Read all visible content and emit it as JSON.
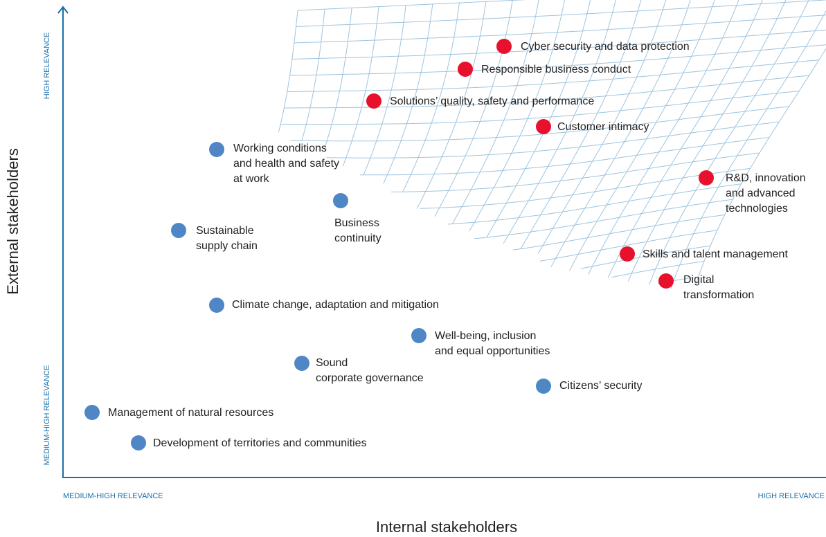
{
  "axes": {
    "y_title": "External stakeholders",
    "x_title": "Internal stakeholders",
    "y_high": "HIGH RELEVANCE",
    "y_low": "MEDIUM-HIGH RELEVANCE",
    "x_low": "MEDIUM-HIGH RELEVANCE",
    "x_high": "HIGH RELEVANCE",
    "color": "#1a6ea8"
  },
  "nodes": [
    {
      "lines": [
        "Cyber security and data protection"
      ],
      "color": "#e8112d"
    },
    {
      "lines": [
        "Responsible business conduct"
      ],
      "color": "#e8112d"
    },
    {
      "lines": [
        "Solutions’ quality, safety and performance"
      ],
      "color": "#e8112d"
    },
    {
      "lines": [
        "Customer intimacy"
      ],
      "color": "#e8112d"
    },
    {
      "lines": [
        "R&D, innovation",
        "and advanced",
        "technologies"
      ],
      "color": "#e8112d"
    },
    {
      "lines": [
        "Skills and talent management"
      ],
      "color": "#e8112d"
    },
    {
      "lines": [
        "Digital",
        "transformation"
      ],
      "color": "#e8112d"
    },
    {
      "lines": [
        "Working conditions",
        "and health and safety",
        "at work"
      ],
      "color": "#4f86c6"
    },
    {
      "lines": [
        "Business",
        "continuity"
      ],
      "color": "#4f86c6"
    },
    {
      "lines": [
        "Sustainable",
        "supply chain"
      ],
      "color": "#4f86c6"
    },
    {
      "lines": [
        "Climate change, adaptation and mitigation"
      ],
      "color": "#4f86c6"
    },
    {
      "lines": [
        "Well-being, inclusion",
        "and equal opportunities"
      ],
      "color": "#4f86c6"
    },
    {
      "lines": [
        "Sound",
        "corporate governance"
      ],
      "color": "#4f86c6"
    },
    {
      "lines": [
        "Citizens’ security"
      ],
      "color": "#4f86c6"
    },
    {
      "lines": [
        "Management of natural resources"
      ],
      "color": "#4f86c6"
    },
    {
      "lines": [
        "Development of territories and communities"
      ],
      "color": "#4f86c6"
    }
  ]
}
